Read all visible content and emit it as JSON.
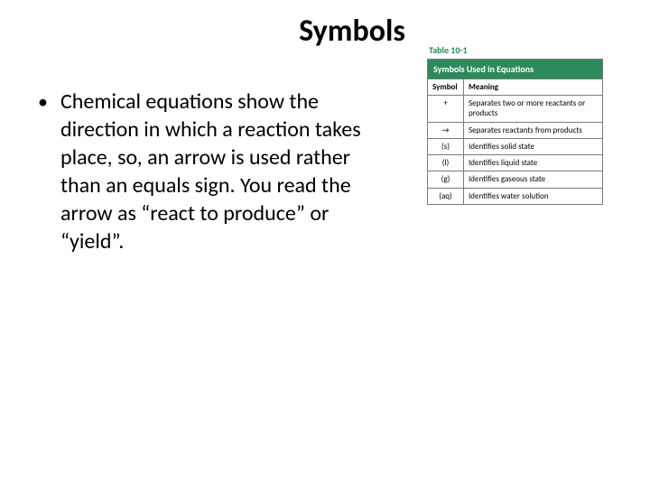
{
  "title": "Symbols",
  "bullet": "Chemical equations show the direction in which a reaction takes place, so, an arrow is used rather than an equals sign. You read the arrow as “react to produce” or “yield”.",
  "table": {
    "label": "Table 10-1",
    "header_title": "Symbols Used in Equations",
    "col1": "Symbol",
    "col2": "Meaning",
    "rows": [
      {
        "symbol": "+",
        "meaning": "Separates two or more reactants or products"
      },
      {
        "symbol": "→",
        "meaning": "Separates reactants from products"
      },
      {
        "symbol": "(s)",
        "meaning": "Identifies solid state"
      },
      {
        "symbol": "(l)",
        "meaning": "Identifies liquid state"
      },
      {
        "symbol": "(g)",
        "meaning": "Identifies gaseous state"
      },
      {
        "symbol": "(aq)",
        "meaning": "Identifies water solution"
      }
    ],
    "colors": {
      "header_bg": "#2c8a5c",
      "header_text": "#ffffff",
      "border": "#7a7a7a",
      "label_color": "#2c8a5c"
    }
  }
}
